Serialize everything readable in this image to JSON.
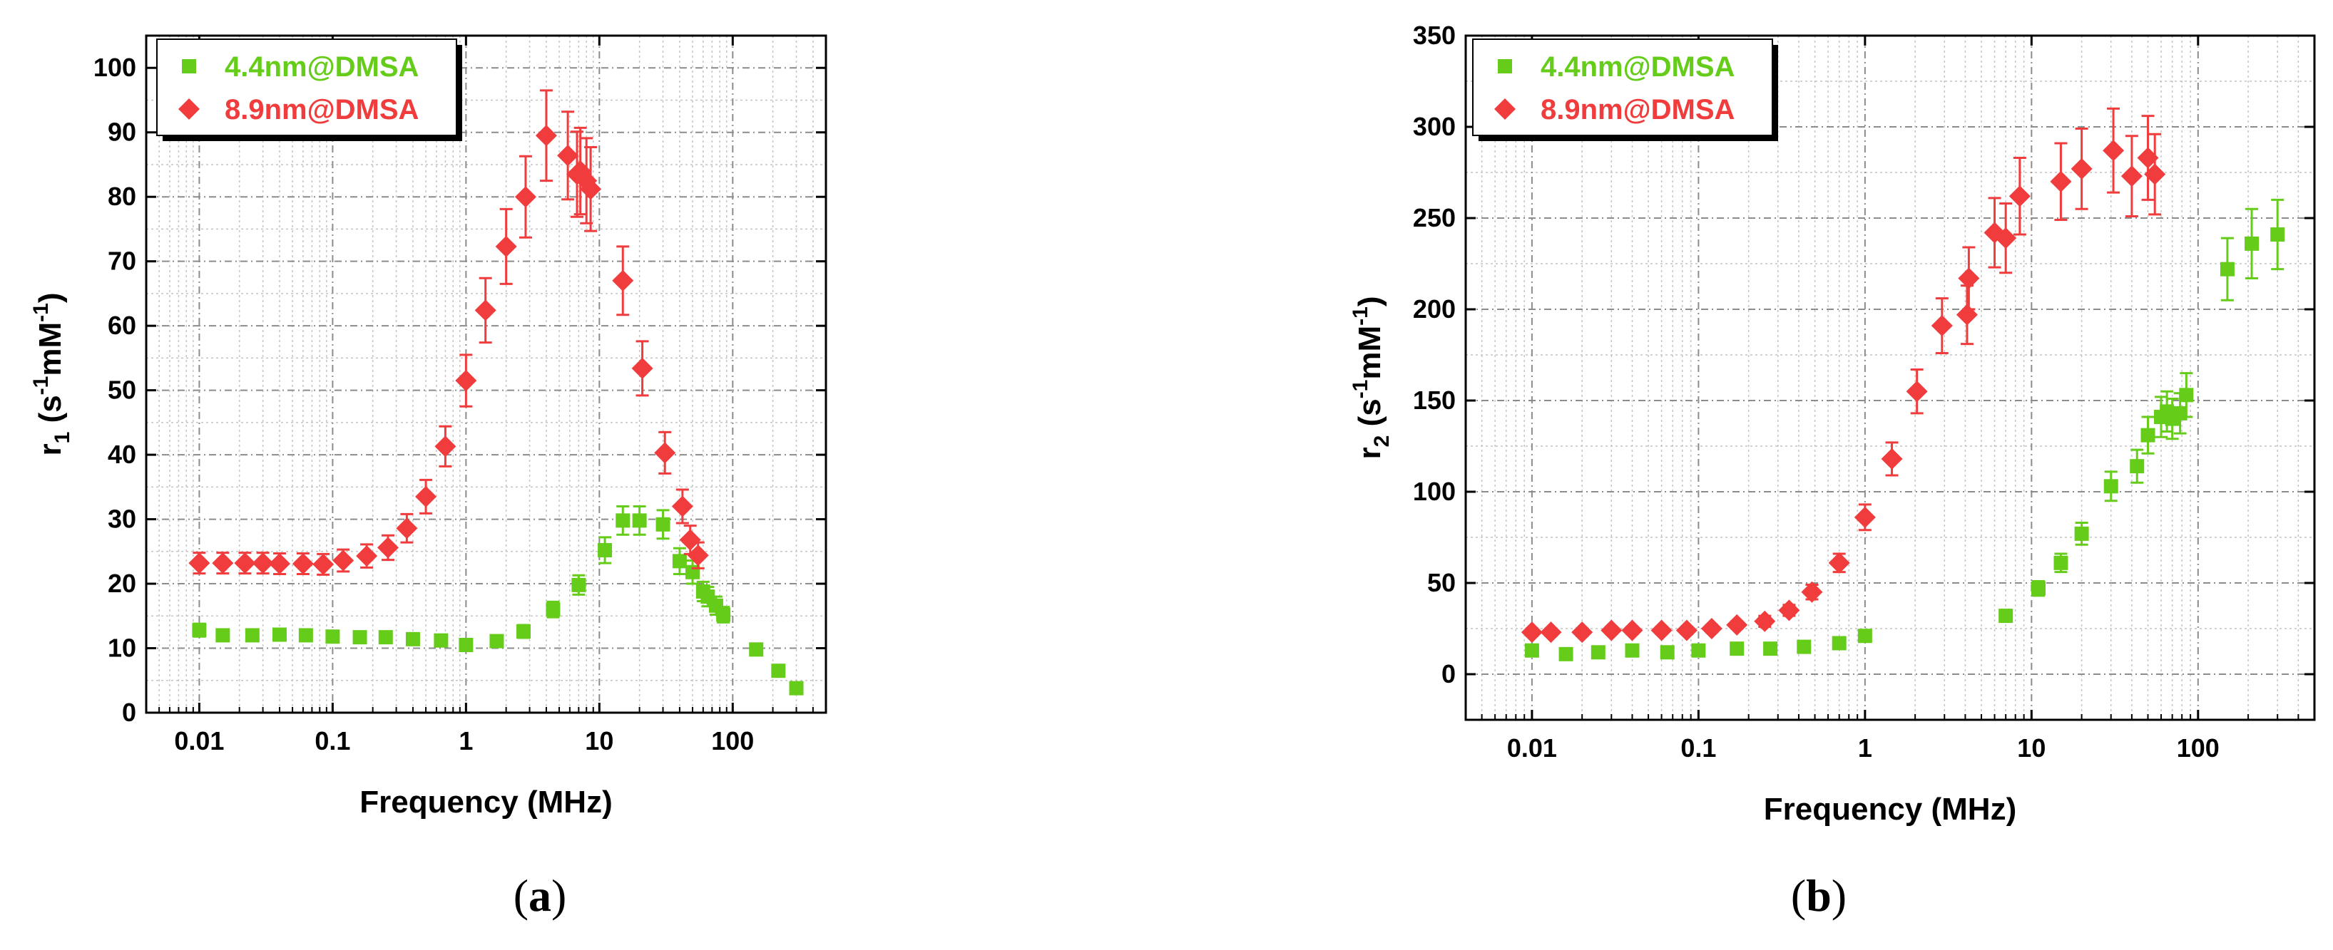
{
  "colors": {
    "series_green": "#66cc1a",
    "series_red": "#f03c3c",
    "axis": "#000000",
    "grid_major": "#8c8c8c",
    "grid_minor": "#c4c4c4"
  },
  "captions": {
    "a": {
      "open": "(",
      "letter": "a",
      "close": ")"
    },
    "b": {
      "open": "(",
      "letter": "b",
      "close": ")"
    }
  },
  "chart_data": [
    {
      "id": "a",
      "type": "scatter",
      "xscale": "log",
      "xlabel": "Frequency (MHz)",
      "ylabel": {
        "prefix": "r",
        "sub": "1",
        "paren_open": " (s",
        "exp1": "-1",
        "mid": "mM",
        "exp2": "-1",
        "paren_close": ")"
      },
      "xlim": [
        0.004,
        500
      ],
      "ylim": [
        0,
        105
      ],
      "xticks": [
        0.01,
        0.1,
        1,
        10,
        100
      ],
      "xtick_labels": [
        "0.01",
        "0.1",
        "1",
        "10",
        "100"
      ],
      "yticks": [
        0,
        10,
        20,
        30,
        40,
        50,
        60,
        70,
        80,
        90,
        100
      ],
      "ytick_labels": [
        "0",
        "10",
        "20",
        "30",
        "40",
        "50",
        "60",
        "70",
        "80",
        "90",
        "100"
      ],
      "legend_position": "top-left",
      "series": [
        {
          "name": "4.4nm@DMSA",
          "marker": "square",
          "color": "#66cc1a",
          "x": [
            0.01,
            0.015,
            0.025,
            0.04,
            0.063,
            0.1,
            0.16,
            0.25,
            0.4,
            0.65,
            1.0,
            1.7,
            2.7,
            4.5,
            7.0,
            11,
            15,
            20,
            30,
            40,
            50,
            60,
            65,
            75,
            85,
            150,
            220,
            300
          ],
          "y": [
            12.8,
            12.0,
            12.0,
            12.1,
            12.0,
            11.8,
            11.7,
            11.7,
            11.4,
            11.2,
            10.5,
            11.1,
            12.6,
            16.0,
            19.8,
            25.2,
            29.8,
            29.8,
            29.2,
            23.5,
            21.8,
            18.8,
            18.0,
            16.6,
            15.2,
            9.8,
            6.5,
            3.8
          ],
          "err": [
            1.0,
            0.8,
            0.8,
            0.8,
            0.8,
            0.8,
            0.8,
            0.8,
            0.8,
            0.8,
            0.8,
            0.8,
            1.0,
            1.2,
            1.5,
            2.0,
            2.2,
            2.2,
            2.2,
            2.0,
            1.8,
            1.5,
            1.5,
            1.4,
            1.2,
            0.8,
            0.6,
            0.5
          ]
        },
        {
          "name": "8.9nm@DMSA",
          "marker": "diamond",
          "color": "#f03c3c",
          "x": [
            0.01,
            0.015,
            0.022,
            0.03,
            0.04,
            0.06,
            0.085,
            0.12,
            0.18,
            0.26,
            0.36,
            0.5,
            0.7,
            1.0,
            1.4,
            2.0,
            2.8,
            4.0,
            5.8,
            6.8,
            7.2,
            8.0,
            8.6,
            15,
            21,
            31,
            42,
            48,
            55
          ],
          "y": [
            23.2,
            23.2,
            23.2,
            23.2,
            23.1,
            23.1,
            23.0,
            23.6,
            24.3,
            25.6,
            28.6,
            33.5,
            41.3,
            51.5,
            62.4,
            72.3,
            80.0,
            89.5,
            86.4,
            83.5,
            84.0,
            82.5,
            81.2,
            67.0,
            53.4,
            40.3,
            32.0,
            26.8,
            24.4
          ],
          "err": [
            1.6,
            1.6,
            1.6,
            1.6,
            1.6,
            1.6,
            1.6,
            1.7,
            1.8,
            1.9,
            2.2,
            2.6,
            3.1,
            4.0,
            5.0,
            5.8,
            6.3,
            7.0,
            6.8,
            6.6,
            6.7,
            6.6,
            6.5,
            5.3,
            4.2,
            3.2,
            2.6,
            2.2,
            2.0
          ]
        }
      ]
    },
    {
      "id": "b",
      "type": "scatter",
      "xscale": "log",
      "xlabel": "Frequency (MHz)",
      "ylabel": {
        "prefix": "r",
        "sub": "2",
        "paren_open": " (s",
        "exp1": "-1",
        "mid": "mM",
        "exp2": "-1",
        "paren_close": ")"
      },
      "xlim": [
        0.004,
        500
      ],
      "ylim": [
        -25,
        350
      ],
      "xticks": [
        0.01,
        0.1,
        1,
        10,
        100
      ],
      "xtick_labels": [
        "0.01",
        "0.1",
        "1",
        "10",
        "100"
      ],
      "yticks": [
        0,
        50,
        100,
        150,
        200,
        250,
        300,
        350
      ],
      "ytick_labels": [
        "0",
        "50",
        "100",
        "150",
        "200",
        "250",
        "300",
        "350"
      ],
      "legend_position": "top-left",
      "series": [
        {
          "name": "4.4nm@DMSA",
          "marker": "square",
          "color": "#66cc1a",
          "x": [
            0.01,
            0.016,
            0.025,
            0.04,
            0.065,
            0.1,
            0.17,
            0.27,
            0.43,
            0.7,
            1.0,
            7.0,
            11,
            15,
            20,
            30,
            43,
            50,
            60,
            65,
            70,
            78,
            85,
            150,
            210,
            300
          ],
          "y": [
            13,
            11,
            12,
            13,
            12,
            13,
            14,
            14,
            15,
            17,
            21,
            32,
            47,
            61,
            77,
            103,
            114,
            131,
            141,
            144,
            140,
            143,
            153,
            222,
            236,
            241
          ],
          "err": [
            2,
            2,
            2,
            2,
            2,
            2,
            2,
            2,
            2,
            2,
            3,
            3,
            4,
            5,
            6,
            8,
            9,
            10,
            11,
            11,
            11,
            11,
            12,
            17,
            19,
            19
          ]
        },
        {
          "name": "8.9nm@DMSA",
          "marker": "diamond",
          "color": "#f03c3c",
          "x": [
            0.01,
            0.013,
            0.02,
            0.03,
            0.04,
            0.06,
            0.085,
            0.12,
            0.17,
            0.25,
            0.35,
            0.48,
            0.7,
            1.0,
            1.45,
            2.05,
            2.9,
            4.1,
            4.2,
            6.0,
            7.0,
            8.5,
            15,
            20,
            31,
            40,
            50,
            55
          ],
          "y": [
            23,
            23,
            23,
            24,
            24,
            24,
            24,
            25,
            27,
            29,
            35,
            45,
            61,
            86,
            118,
            155,
            191,
            197,
            217,
            242,
            239,
            262,
            270,
            277,
            287,
            273,
            283,
            274
          ],
          "err": [
            2,
            2,
            2,
            2,
            2,
            2,
            2,
            2,
            2,
            3,
            3,
            4,
            5,
            7,
            9,
            12,
            15,
            16,
            17,
            19,
            19,
            21,
            21,
            22,
            23,
            22,
            23,
            22
          ]
        }
      ]
    }
  ]
}
